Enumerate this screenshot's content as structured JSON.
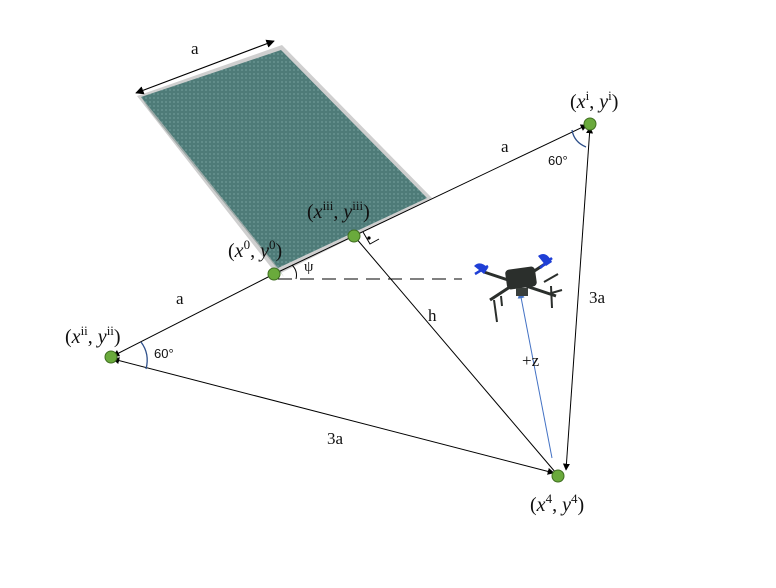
{
  "labels": {
    "top_a": "a",
    "right_a": "a",
    "left_a": "a",
    "right_3a": "3a",
    "bottom_3a": "3a",
    "h": "h",
    "plus_z": "+z",
    "psi": "ψ",
    "angle_right": "60°",
    "angle_left": "60°"
  },
  "points": {
    "p0": {
      "base": "x",
      "sup": "0",
      "base2": "y",
      "sup2": "0"
    },
    "pi": {
      "base": "x",
      "sup": "i",
      "base2": "y",
      "sup2": "i"
    },
    "pii": {
      "base": "x",
      "sup": "ii",
      "base2": "y",
      "sup2": "ii"
    },
    "piii": {
      "base": "x",
      "sup": "iii",
      "base2": "y",
      "sup2": "iii"
    },
    "p4": {
      "base": "x",
      "sup": "4",
      "base2": "y",
      "sup2": "4"
    }
  },
  "colors": {
    "panel": "#4e7b78",
    "panel_edge": "#d9d9d9",
    "point": "#6aaa3c",
    "arrow": "#000000",
    "z_arrow": "#4472c4",
    "drone_body": "#2b2f2c",
    "drone_props": "#1f3fd6"
  }
}
